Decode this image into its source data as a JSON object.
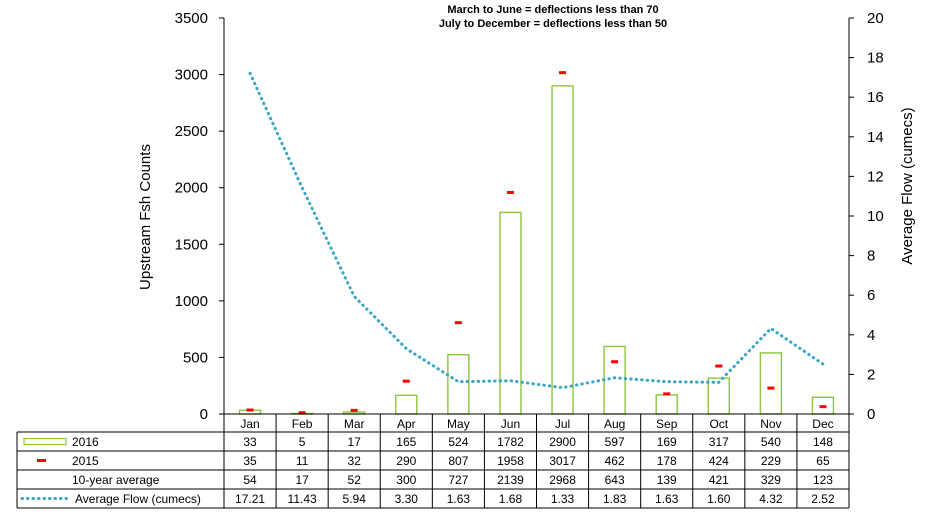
{
  "chart_data": {
    "type": "bar",
    "subtitle_lines": [
      "March to June = deflections less than 70",
      "July to December = deflections less than 50"
    ],
    "categories": [
      "Jan",
      "Feb",
      "Mar",
      "Apr",
      "May",
      "Jun",
      "Jul",
      "Aug",
      "Sep",
      "Oct",
      "Nov",
      "Dec"
    ],
    "y_left": {
      "label": "Upstream  Fsh Counts",
      "lim": [
        0,
        3500
      ],
      "ticks": [
        0,
        500,
        1000,
        1500,
        2000,
        2500,
        3000,
        3500
      ]
    },
    "y_right": {
      "label": "Average Flow (cumecs)",
      "lim": [
        0,
        20
      ],
      "ticks": [
        0,
        2,
        4,
        6,
        8,
        10,
        12,
        14,
        16,
        18,
        20
      ]
    },
    "grid": false,
    "series": [
      {
        "name": "2016",
        "kind": "bar",
        "axis": "left",
        "color": "#8cc63f",
        "values": [
          33,
          5,
          17,
          165,
          524,
          1782,
          2900,
          597,
          169,
          317,
          540,
          148
        ],
        "labels": [
          "33",
          "5",
          "17",
          "165",
          "524",
          "1782",
          "2900",
          "597",
          "169",
          "317",
          "540",
          "148"
        ]
      },
      {
        "name": "2015",
        "kind": "marker",
        "axis": "left",
        "color": "#ff0000",
        "values": [
          35,
          11,
          32,
          290,
          807,
          1958,
          3017,
          462,
          178,
          424,
          229,
          65
        ],
        "labels": [
          "35",
          "11",
          "32",
          "290",
          "807",
          "1958",
          "3017",
          "462",
          "178",
          "424",
          "229",
          "65"
        ]
      },
      {
        "name": "10-year average",
        "kind": "table-only",
        "axis": "left",
        "color": "",
        "values": [
          54,
          17,
          52,
          300,
          727,
          2139,
          2968,
          643,
          139,
          421,
          329,
          123
        ],
        "labels": [
          "54",
          "17",
          "52",
          "300",
          "727",
          "2139",
          "2968",
          "643",
          "139",
          "421",
          "329",
          "123"
        ]
      },
      {
        "name": "Average Flow (cumecs)",
        "kind": "dotted-line",
        "axis": "right",
        "color": "#3aa6c4",
        "values": [
          17.21,
          11.43,
          5.94,
          3.3,
          1.63,
          1.68,
          1.33,
          1.83,
          1.63,
          1.6,
          4.32,
          2.52
        ],
        "labels": [
          "17.21",
          "11.43",
          "5.94",
          "3.30",
          "1.63",
          "1.68",
          "1.33",
          "1.83",
          "1.63",
          "1.60",
          "4.32",
          "2.52"
        ]
      }
    ]
  }
}
